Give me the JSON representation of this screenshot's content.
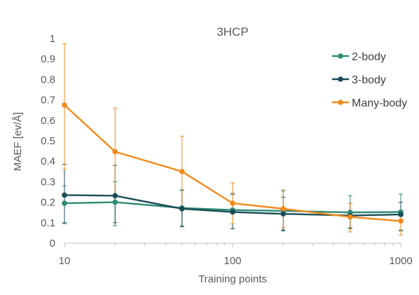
{
  "chart_data": {
    "type": "line",
    "title": "3HCP",
    "xlabel": "Training points",
    "ylabel": "MAEF [ev/Å]",
    "x_scale": "log",
    "xlim": [
      10,
      1000
    ],
    "ylim": [
      0,
      1
    ],
    "x_ticks": [
      "10",
      "100",
      "1000"
    ],
    "y_ticks": [
      "0",
      "0.1",
      "0.2",
      "0.3",
      "0.4",
      "0.5",
      "0.6",
      "0.7",
      "0.8",
      "0.9",
      "1"
    ],
    "grid": false,
    "legend_position": "top-right",
    "x": [
      10,
      20,
      50,
      100,
      200,
      500,
      1000
    ],
    "series": [
      {
        "name": "2-body",
        "color": "#2e8b75",
        "values": [
          0.195,
          0.2,
          0.172,
          0.162,
          0.158,
          0.15,
          0.152
        ],
        "err_upper": [
          0.28,
          0.3,
          0.26,
          0.245,
          0.255,
          0.232,
          0.24
        ],
        "err_lower": [
          0.095,
          0.085,
          0.085,
          0.07,
          0.065,
          0.07,
          0.065
        ]
      },
      {
        "name": "3-body",
        "color": "#1a4d57",
        "values": [
          0.235,
          0.232,
          0.168,
          0.152,
          0.143,
          0.135,
          0.14
        ],
        "err_upper": [
          0.385,
          0.38,
          0.258,
          0.238,
          0.225,
          0.195,
          0.2
        ],
        "err_lower": [
          0.1,
          0.1,
          0.08,
          0.07,
          0.06,
          0.075,
          0.06
        ]
      },
      {
        "name": "Many-body",
        "color": "#f28a1c",
        "values": [
          0.675,
          0.447,
          0.35,
          0.195,
          0.168,
          0.128,
          0.108
        ],
        "err_upper": [
          0.975,
          0.66,
          0.523,
          0.295,
          0.26,
          0.195,
          0.15
        ],
        "err_lower": [
          0.36,
          0.235,
          0.18,
          0.095,
          0.075,
          0.055,
          0.04
        ]
      }
    ]
  }
}
